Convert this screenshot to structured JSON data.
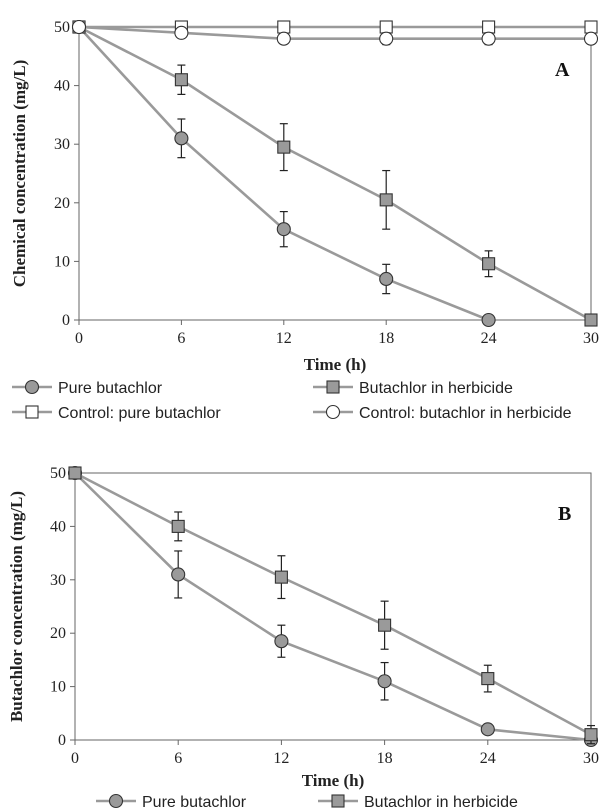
{
  "chart_data": [
    {
      "type": "line",
      "panel_label": "A",
      "xlabel": "Time (h)",
      "ylabel": "Chemical concentration (mg/L)",
      "x": [
        0,
        6,
        12,
        18,
        24,
        30
      ],
      "xticks": [
        "0",
        "6",
        "12",
        "18",
        "24",
        "30"
      ],
      "yticks": [
        "0",
        "10",
        "20",
        "30",
        "40",
        "50"
      ],
      "xlim": [
        0,
        30
      ],
      "ylim": [
        0,
        50
      ],
      "grid": false,
      "legend_position": "bottom",
      "series": [
        {
          "name": "Pure butachlor",
          "marker": "circle",
          "fill": "#9a9a9a",
          "x": [
            0,
            6,
            12,
            18,
            24
          ],
          "values": [
            50,
            31,
            15.5,
            7,
            0
          ],
          "error": [
            0,
            3.3,
            3,
            2.5,
            0
          ]
        },
        {
          "name": "Butachlor in herbicide",
          "marker": "square",
          "fill": "#9a9a9a",
          "x": [
            0,
            6,
            12,
            18,
            24,
            30
          ],
          "values": [
            50,
            41,
            29.5,
            20.5,
            9.6,
            0
          ],
          "error": [
            0,
            2.5,
            4,
            5,
            2.2,
            0
          ]
        },
        {
          "name": "Control: pure butachlor",
          "marker": "square",
          "fill": "#ffffff",
          "x": [
            0,
            6,
            12,
            18,
            24,
            30
          ],
          "values": [
            50,
            50,
            50,
            50,
            50,
            50
          ],
          "error": [
            0,
            0,
            0,
            0,
            0,
            0
          ]
        },
        {
          "name": "Control: butachlor in herbicide",
          "marker": "circle",
          "fill": "#ffffff",
          "x": [
            0,
            6,
            12,
            18,
            24,
            30
          ],
          "values": [
            50,
            49,
            48,
            48,
            48,
            48
          ],
          "error": [
            0,
            0,
            0,
            1,
            1,
            0
          ]
        }
      ]
    },
    {
      "type": "line",
      "panel_label": "B",
      "xlabel": "Time (h)",
      "ylabel": "Butachlor concentration (mg/L)",
      "x": [
        0,
        6,
        12,
        18,
        24,
        30
      ],
      "xticks": [
        "0",
        "6",
        "12",
        "18",
        "24",
        "30"
      ],
      "yticks": [
        "0",
        "10",
        "20",
        "30",
        "40",
        "50"
      ],
      "xlim": [
        0,
        30
      ],
      "ylim": [
        0,
        50
      ],
      "grid": false,
      "legend_position": "bottom",
      "series": [
        {
          "name": "Pure butachlor",
          "marker": "circle",
          "fill": "#9a9a9a",
          "x": [
            0,
            6,
            12,
            18,
            24,
            30
          ],
          "values": [
            50,
            31,
            18.5,
            11,
            2,
            0
          ],
          "error": [
            0,
            4.4,
            3,
            3.5,
            0,
            0
          ]
        },
        {
          "name": "Butachlor in herbicide",
          "marker": "square",
          "fill": "#9a9a9a",
          "x": [
            0,
            6,
            12,
            18,
            24,
            30
          ],
          "values": [
            50,
            40,
            30.5,
            21.5,
            11.5,
            1
          ],
          "error": [
            0,
            2.7,
            4,
            4.5,
            2.5,
            1.7
          ]
        }
      ]
    }
  ]
}
